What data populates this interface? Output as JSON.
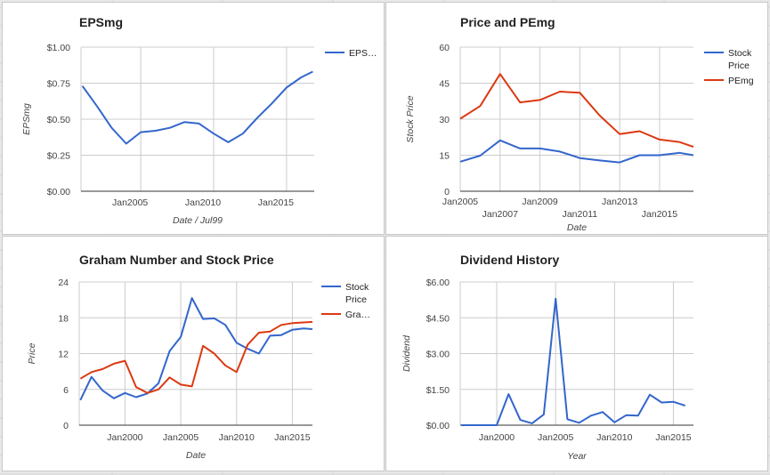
{
  "colors": {
    "blue": "#3366cc",
    "red": "#dc3912",
    "grid": "#cccccc",
    "axis": "#333333",
    "text": "#222222",
    "muted": "#444444"
  },
  "chart_data": [
    {
      "id": "eps",
      "type": "line",
      "title": "EPSmg",
      "xlabel": "Date / Jul99",
      "ylabel": "EPSmg",
      "xlim": [
        2000.9,
        2016.9
      ],
      "ylim": [
        0,
        1
      ],
      "yticks": [
        0,
        0.25,
        0.5,
        0.75,
        1
      ],
      "ytick_labels": [
        "$0.00",
        "$0.25",
        "$0.50",
        "$0.75",
        "$1.00"
      ],
      "xticks": [
        {
          "label": "Jan2005",
          "x": 2005,
          "row": 0
        },
        {
          "label": "Jan2010",
          "x": 2010,
          "row": 0
        },
        {
          "label": "Jan2015",
          "x": 2015,
          "row": 0
        }
      ],
      "grid": true,
      "legend_position": "right",
      "series": [
        {
          "name": "EPS…",
          "color": "#3366cc",
          "x": [
            2001,
            2002,
            2003,
            2004,
            2005,
            2006,
            2007,
            2008,
            2009,
            2010,
            2011,
            2012,
            2013,
            2014,
            2015,
            2016,
            2016.8
          ],
          "y": [
            0.73,
            0.59,
            0.44,
            0.33,
            0.41,
            0.42,
            0.44,
            0.48,
            0.47,
            0.4,
            0.34,
            0.4,
            0.51,
            0.61,
            0.72,
            0.79,
            0.83
          ]
        }
      ]
    },
    {
      "id": "price_pe",
      "type": "line",
      "title": "Price and PEmg",
      "xlabel": "Date",
      "ylabel": "Stock Price",
      "xlim": [
        2005,
        2016.7
      ],
      "ylim": [
        0,
        60
      ],
      "yticks": [
        0,
        15,
        30,
        45,
        60
      ],
      "ytick_labels": [
        "0",
        "15",
        "30",
        "45",
        "60"
      ],
      "xticks": [
        {
          "label": "Jan2005",
          "x": 2005,
          "row": 0
        },
        {
          "label": "Jan2007",
          "x": 2007,
          "row": 1
        },
        {
          "label": "Jan2009",
          "x": 2009,
          "row": 0
        },
        {
          "label": "Jan2011",
          "x": 2011,
          "row": 1
        },
        {
          "label": "Jan2013",
          "x": 2013,
          "row": 0
        },
        {
          "label": "Jan2015",
          "x": 2015,
          "row": 1
        }
      ],
      "grid": true,
      "legend_position": "right",
      "series": [
        {
          "name": "Stock Price",
          "color": "#3366cc",
          "x": [
            2005,
            2006,
            2007,
            2008,
            2009,
            2010,
            2011,
            2012,
            2013,
            2014,
            2015,
            2016,
            2016.7
          ],
          "y": [
            12.3,
            14.8,
            21.2,
            17.8,
            17.8,
            16.5,
            13.8,
            12.8,
            12.0,
            15.0,
            15.0,
            16.0,
            15.0
          ]
        },
        {
          "name": "PEmg",
          "color": "#dc3912",
          "x": [
            2005,
            2006,
            2007,
            2008,
            2009,
            2010,
            2011,
            2012,
            2013,
            2014,
            2015,
            2016,
            2016.7
          ],
          "y": [
            30.2,
            35.5,
            48.8,
            37.0,
            38.0,
            41.5,
            41.0,
            31.5,
            23.8,
            25.0,
            21.5,
            20.5,
            18.5
          ]
        }
      ]
    },
    {
      "id": "graham",
      "type": "line",
      "title": "Graham Number and Stock Price",
      "xlabel": "Date",
      "ylabel": "Price",
      "xlim": [
        1995.9,
        2016.8
      ],
      "ylim": [
        0,
        24
      ],
      "yticks": [
        0,
        6,
        12,
        18,
        24
      ],
      "ytick_labels": [
        "0",
        "6",
        "12",
        "18",
        "24"
      ],
      "xticks": [
        {
          "label": "Jan2000",
          "x": 2000,
          "row": 0
        },
        {
          "label": "Jan2005",
          "x": 2005,
          "row": 0
        },
        {
          "label": "Jan2010",
          "x": 2010,
          "row": 0
        },
        {
          "label": "Jan2015",
          "x": 2015,
          "row": 0
        }
      ],
      "grid": true,
      "legend_position": "right",
      "series": [
        {
          "name": "Stock Price",
          "color": "#3366cc",
          "x": [
            1996,
            1997,
            1998,
            1999,
            2000,
            2001,
            2002,
            2003,
            2004,
            2005,
            2006,
            2007,
            2008,
            2009,
            2010,
            2011,
            2012,
            2013,
            2014,
            2015,
            2016,
            2016.8
          ],
          "y": [
            4.2,
            8.1,
            5.8,
            4.5,
            5.4,
            4.7,
            5.3,
            7.0,
            12.4,
            14.8,
            21.3,
            17.8,
            17.9,
            16.8,
            13.8,
            12.8,
            12.0,
            15.0,
            15.1,
            16.0,
            16.2,
            16.1
          ],
          "draw_x": [
            1996,
            1997,
            1998,
            1999,
            2000,
            2001,
            2002,
            2003,
            2004,
            2005,
            2006,
            2007,
            2008,
            2009,
            2010,
            2011,
            2012,
            2013,
            2014,
            2015,
            2016,
            2016.8
          ]
        },
        {
          "name": "Gra…",
          "color": "#dc3912",
          "x": [
            1996,
            1997,
            1998,
            1999,
            2000,
            2001,
            2002,
            2003,
            2004,
            2005,
            2006,
            2007,
            2008,
            2009,
            2010,
            2011,
            2012,
            2013,
            2014,
            2015,
            2016.8
          ],
          "y": [
            7.8,
            8.9,
            9.4,
            10.3,
            10.8,
            6.4,
            5.4,
            6.0,
            8.0,
            6.8,
            6.5,
            13.3,
            12.0,
            10.0,
            8.9,
            13.5,
            15.5,
            15.7,
            16.8,
            17.1,
            17.3
          ]
        }
      ]
    },
    {
      "id": "dividend",
      "type": "line",
      "title": "Dividend History",
      "xlabel": "Year",
      "ylabel": "Dividend",
      "xlim": [
        1996.9,
        2016.7
      ],
      "ylim": [
        0,
        6
      ],
      "yticks": [
        0,
        1.5,
        3,
        4.5,
        6
      ],
      "ytick_labels": [
        "$0.00",
        "$1.50",
        "$3.00",
        "$4.50",
        "$6.00"
      ],
      "xticks": [
        {
          "label": "Jan2000",
          "x": 2000,
          "row": 0
        },
        {
          "label": "Jan2005",
          "x": 2005,
          "row": 0
        },
        {
          "label": "Jan2010",
          "x": 2010,
          "row": 0
        },
        {
          "label": "Jan2015",
          "x": 2015,
          "row": 0
        }
      ],
      "grid": true,
      "legend_position": "none",
      "series": [
        {
          "name": "",
          "color": "#3366cc",
          "x": [
            1997,
            1998,
            1999,
            2000,
            2001,
            2002,
            2003,
            2004,
            2005,
            2006,
            2007,
            2008,
            2009,
            2010,
            2011,
            2012,
            2013,
            2014,
            2015,
            2016
          ],
          "y": [
            0,
            0,
            0,
            0,
            1.3,
            0.22,
            0.08,
            0.45,
            5.3,
            0.25,
            0.1,
            0.4,
            0.55,
            0.12,
            0.42,
            0.4,
            1.28,
            0.95,
            0.98,
            0.82
          ]
        }
      ]
    }
  ]
}
